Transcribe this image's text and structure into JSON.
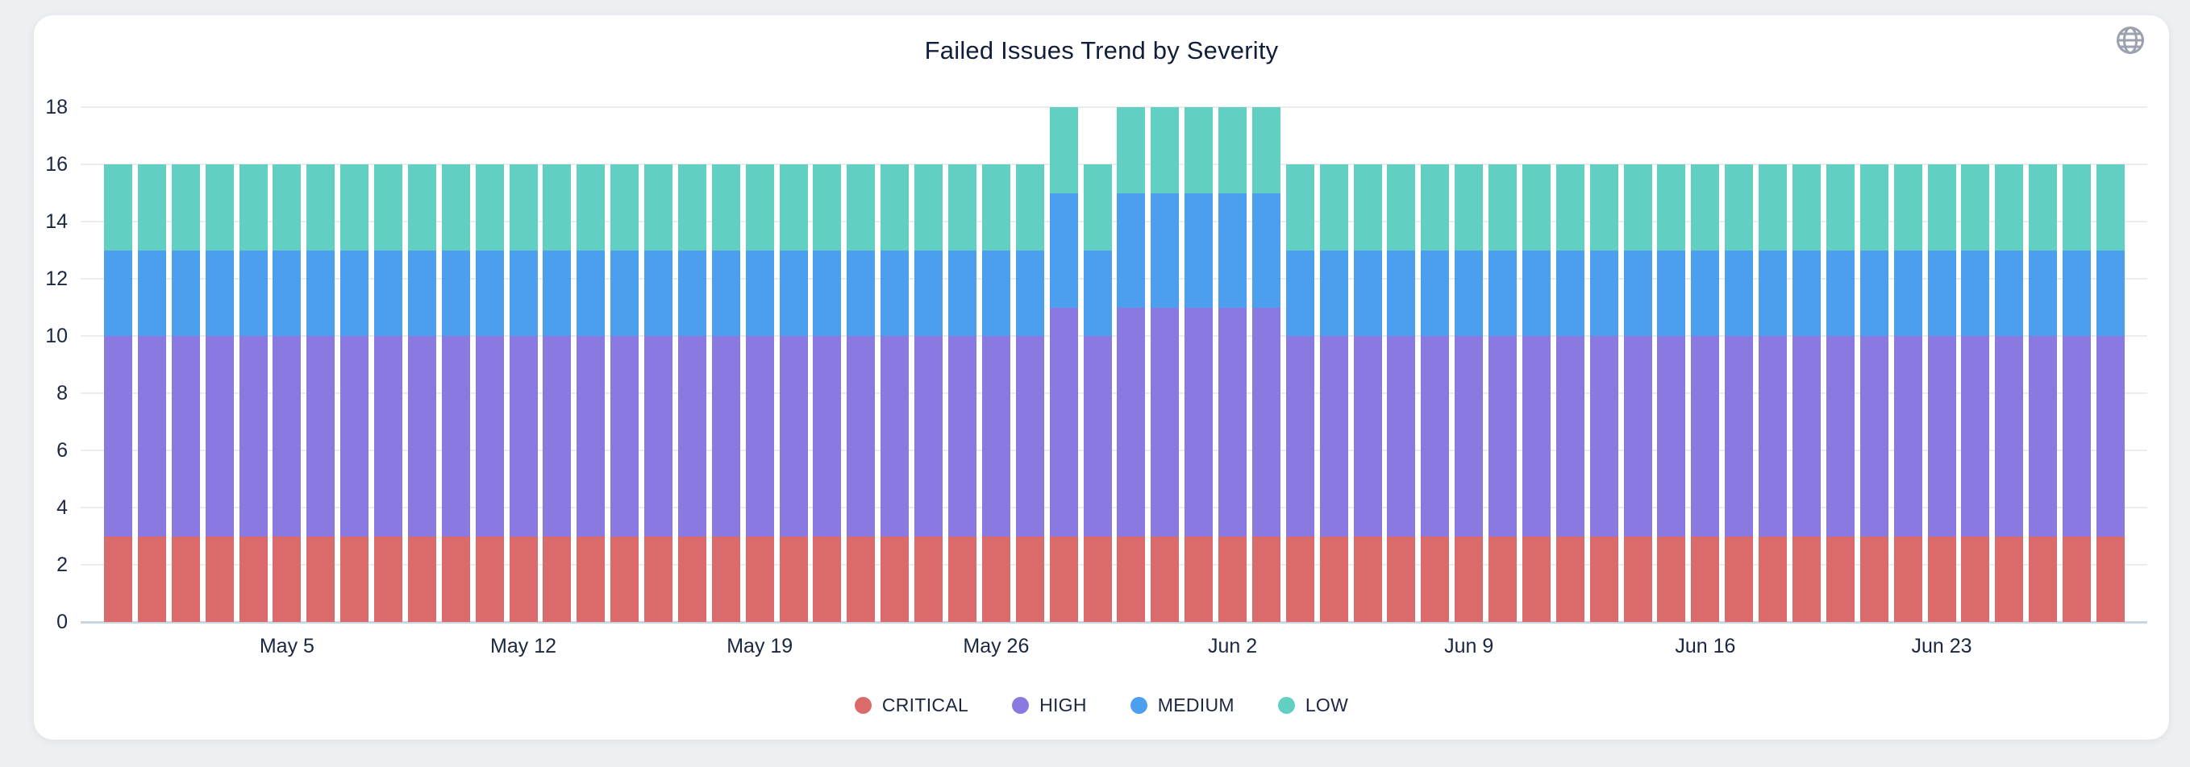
{
  "title": "Failed Issues Trend by Severity",
  "icons": {
    "globe": "globe-icon"
  },
  "colors": {
    "card_background": "#ffffff",
    "page_background": "#edeff2",
    "text": "#1b2740",
    "gridline": "#ececec",
    "axis_line": "#c9d5e3",
    "globe_icon": "#9ba2ad"
  },
  "chart_data": {
    "type": "bar",
    "stacked": true,
    "title": "Failed Issues Trend by Severity",
    "grid": true,
    "legend_position": "bottom",
    "ylim": [
      0,
      18
    ],
    "yticks": [
      0,
      2,
      4,
      6,
      8,
      10,
      12,
      14,
      16,
      18
    ],
    "categories": [
      "Apr 30",
      "May 1",
      "May 2",
      "May 3",
      "May 4",
      "May 5",
      "May 6",
      "May 7",
      "May 8",
      "May 9",
      "May 10",
      "May 11",
      "May 12",
      "May 13",
      "May 14",
      "May 15",
      "May 16",
      "May 17",
      "May 18",
      "May 19",
      "May 20",
      "May 21",
      "May 22",
      "May 23",
      "May 24",
      "May 25",
      "May 26",
      "May 27",
      "May 28",
      "May 29",
      "May 30",
      "May 31",
      "Jun 1",
      "Jun 2",
      "Jun 3",
      "Jun 4",
      "Jun 5",
      "Jun 6",
      "Jun 7",
      "Jun 8",
      "Jun 9",
      "Jun 10",
      "Jun 11",
      "Jun 12",
      "Jun 13",
      "Jun 14",
      "Jun 15",
      "Jun 16",
      "Jun 17",
      "Jun 18",
      "Jun 19",
      "Jun 20",
      "Jun 21",
      "Jun 22",
      "Jun 23",
      "Jun 24",
      "Jun 25",
      "Jun 26",
      "Jun 27",
      "Jun 28"
    ],
    "xticks": [
      {
        "label": "May 5",
        "index": 5
      },
      {
        "label": "May 12",
        "index": 12
      },
      {
        "label": "May 19",
        "index": 19
      },
      {
        "label": "May 26",
        "index": 26
      },
      {
        "label": "Jun 2",
        "index": 33
      },
      {
        "label": "Jun 9",
        "index": 40
      },
      {
        "label": "Jun 16",
        "index": 47
      },
      {
        "label": "Jun 23",
        "index": 54
      }
    ],
    "series": [
      {
        "name": "CRITICAL",
        "color": "#db6a6a",
        "values": [
          3,
          3,
          3,
          3,
          3,
          3,
          3,
          3,
          3,
          3,
          3,
          3,
          3,
          3,
          3,
          3,
          3,
          3,
          3,
          3,
          3,
          3,
          3,
          3,
          3,
          3,
          3,
          3,
          3,
          3,
          3,
          3,
          3,
          3,
          3,
          3,
          3,
          3,
          3,
          3,
          3,
          3,
          3,
          3,
          3,
          3,
          3,
          3,
          3,
          3,
          3,
          3,
          3,
          3,
          3,
          3,
          3,
          3,
          3,
          3
        ]
      },
      {
        "name": "HIGH",
        "color": "#8a79e0",
        "values": [
          7,
          7,
          7,
          7,
          7,
          7,
          7,
          7,
          7,
          7,
          7,
          7,
          7,
          7,
          7,
          7,
          7,
          7,
          7,
          7,
          7,
          7,
          7,
          7,
          7,
          7,
          7,
          7,
          8,
          7,
          8,
          8,
          8,
          8,
          8,
          7,
          7,
          7,
          7,
          7,
          7,
          7,
          7,
          7,
          7,
          7,
          7,
          7,
          7,
          7,
          7,
          7,
          7,
          7,
          7,
          7,
          7,
          7,
          7,
          7
        ]
      },
      {
        "name": "MEDIUM",
        "color": "#4b9fee",
        "values": [
          3,
          3,
          3,
          3,
          3,
          3,
          3,
          3,
          3,
          3,
          3,
          3,
          3,
          3,
          3,
          3,
          3,
          3,
          3,
          3,
          3,
          3,
          3,
          3,
          3,
          3,
          3,
          3,
          4,
          3,
          4,
          4,
          4,
          4,
          4,
          3,
          3,
          3,
          3,
          3,
          3,
          3,
          3,
          3,
          3,
          3,
          3,
          3,
          3,
          3,
          3,
          3,
          3,
          3,
          3,
          3,
          3,
          3,
          3,
          3
        ]
      },
      {
        "name": "LOW",
        "color": "#61cfc2",
        "values": [
          3,
          3,
          3,
          3,
          3,
          3,
          3,
          3,
          3,
          3,
          3,
          3,
          3,
          3,
          3,
          3,
          3,
          3,
          3,
          3,
          3,
          3,
          3,
          3,
          3,
          3,
          3,
          3,
          3,
          3,
          3,
          3,
          3,
          3,
          3,
          3,
          3,
          3,
          3,
          3,
          3,
          3,
          3,
          3,
          3,
          3,
          3,
          3,
          3,
          3,
          3,
          3,
          3,
          3,
          3,
          3,
          3,
          3,
          3,
          3
        ]
      }
    ]
  }
}
